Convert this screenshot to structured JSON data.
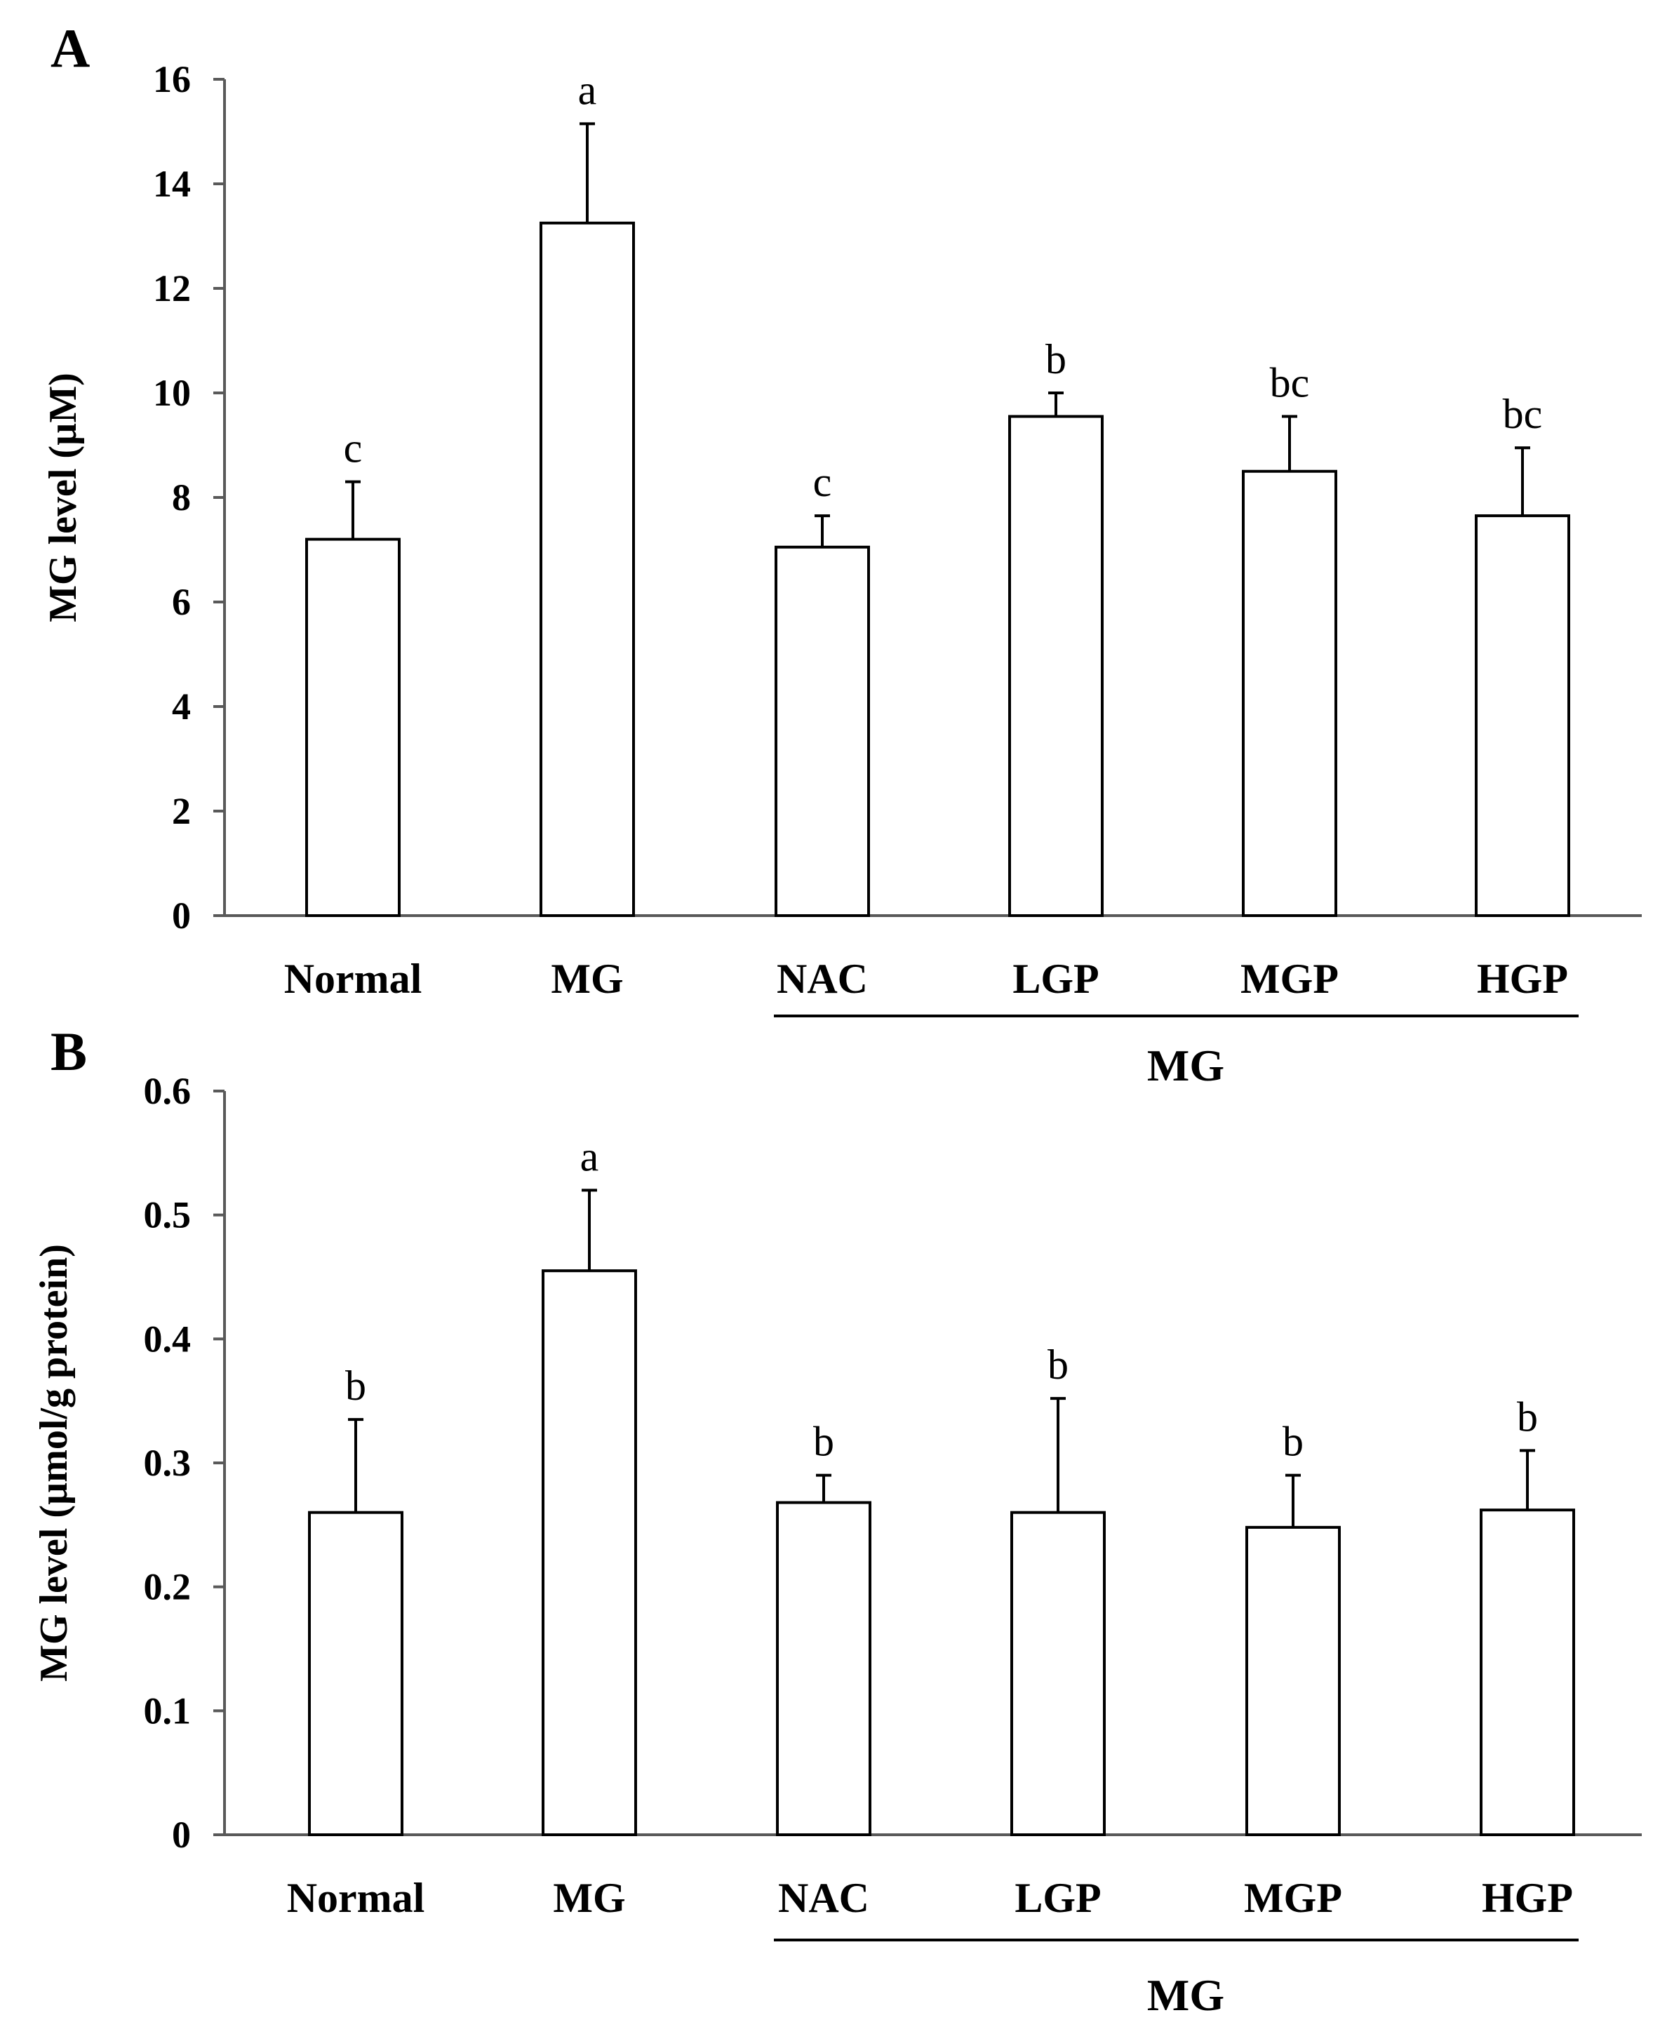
{
  "chart_data": [
    {
      "type": "bar",
      "panel": "A",
      "categories": [
        "Normal",
        "MG",
        "NAC",
        "LGP",
        "MGP",
        "HGP"
      ],
      "values": [
        7.2,
        13.25,
        7.05,
        9.55,
        8.5,
        7.65
      ],
      "errors": [
        1.1,
        1.9,
        0.6,
        0.45,
        1.05,
        1.3
      ],
      "significance": [
        "c",
        "a",
        "c",
        "b",
        "bc",
        "bc"
      ],
      "ylabel": "MG level (µM)",
      "xlabel": "",
      "ylim": [
        0,
        16
      ],
      "yticks": [
        "0",
        "2",
        "4",
        "6",
        "8",
        "10",
        "12",
        "14",
        "16"
      ],
      "group_label": "MG",
      "group_span": [
        "NAC",
        "HGP"
      ],
      "bar_color": "#ffffff",
      "grid": false
    },
    {
      "type": "bar",
      "panel": "B",
      "categories": [
        "Normal",
        "MG",
        "NAC",
        "LGP",
        "MGP",
        "HGP"
      ],
      "values": [
        0.26,
        0.455,
        0.268,
        0.26,
        0.248,
        0.262
      ],
      "errors": [
        0.075,
        0.065,
        0.022,
        0.092,
        0.042,
        0.048
      ],
      "significance": [
        "b",
        "a",
        "b",
        "b",
        "b",
        "b"
      ],
      "ylabel": "MG level (µmol/g protein)",
      "xlabel": "",
      "ylim": [
        0,
        0.6
      ],
      "yticks": [
        "0",
        "0.1",
        "0.2",
        "0.3",
        "0.4",
        "0.5",
        "0.6"
      ],
      "group_label": "MG",
      "group_span": [
        "NAC",
        "HGP"
      ],
      "bar_color": "#ffffff",
      "grid": false
    }
  ]
}
